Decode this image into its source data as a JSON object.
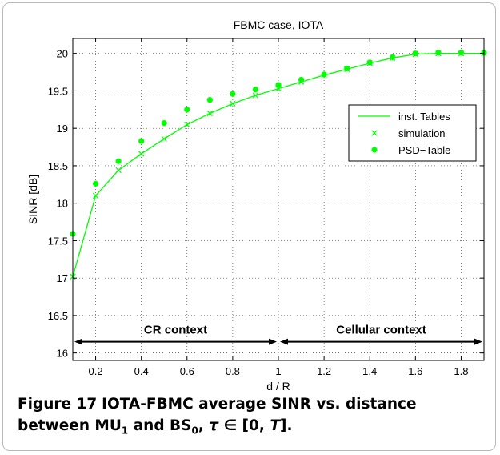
{
  "chart_data": {
    "type": "line",
    "title": "FBMC case, IOTA",
    "xlabel": "d / R",
    "ylabel": "SINR [dB]",
    "xlim": [
      0.1,
      1.9
    ],
    "ylim": [
      15.9,
      20.2
    ],
    "grid": true,
    "grid_style": "dotted",
    "legend_position": "center-right",
    "x_ticks": [
      0.2,
      0.4,
      0.6,
      0.8,
      1,
      1.2,
      1.4,
      1.6,
      1.8
    ],
    "y_ticks": [
      16,
      16.5,
      17,
      17.5,
      18,
      18.5,
      19,
      19.5,
      20
    ],
    "series": [
      {
        "name": "inst. Tables",
        "style": "line",
        "color": "#00ff00",
        "x": [
          0.1,
          0.2,
          0.3,
          0.4,
          0.5,
          0.6,
          0.7,
          0.8,
          0.9,
          1.0,
          1.1,
          1.2,
          1.3,
          1.4,
          1.5,
          1.6,
          1.7,
          1.8,
          1.9
        ],
        "y": [
          17.02,
          18.1,
          18.44,
          18.66,
          18.86,
          19.05,
          19.2,
          19.33,
          19.44,
          19.53,
          19.62,
          19.71,
          19.79,
          19.87,
          19.94,
          19.99,
          20.0,
          20.0,
          20.0
        ]
      },
      {
        "name": "simulation",
        "style": "x-marker",
        "color": "#00ff00",
        "x": [
          0.1,
          0.2,
          0.3,
          0.4,
          0.5,
          0.6,
          0.7,
          0.8,
          0.9,
          1.0,
          1.1,
          1.2,
          1.3,
          1.4,
          1.5,
          1.6,
          1.7,
          1.8,
          1.9
        ],
        "y": [
          17.02,
          18.1,
          18.44,
          18.66,
          18.86,
          19.05,
          19.2,
          19.33,
          19.44,
          19.53,
          19.62,
          19.71,
          19.79,
          19.87,
          19.94,
          19.99,
          20.0,
          20.0,
          20.0
        ]
      },
      {
        "name": "PSD−Table",
        "style": "dot-marker",
        "color": "#00ff00",
        "x": [
          0.1,
          0.2,
          0.3,
          0.4,
          0.5,
          0.6,
          0.7,
          0.8,
          0.9,
          1.0,
          1.1,
          1.2,
          1.3,
          1.4,
          1.5,
          1.6,
          1.7,
          1.8,
          1.9
        ],
        "y": [
          17.59,
          18.26,
          18.56,
          18.83,
          19.07,
          19.25,
          19.38,
          19.46,
          19.52,
          19.58,
          19.65,
          19.72,
          19.8,
          19.88,
          19.95,
          20.0,
          20.01,
          20.01,
          20.01
        ]
      }
    ],
    "annotations": [
      {
        "text": "CR context",
        "x_from": 0.1,
        "x_to": 1.0,
        "y": 16.15
      },
      {
        "text": "Cellular context",
        "x_from": 1.0,
        "x_to": 1.9,
        "y": 16.15
      }
    ]
  },
  "caption": {
    "figure_label": "Figure 17",
    "text_part1": "IOTA-FBMC average SINR vs. distance between MU",
    "sub1": "1",
    "text_part2": "and BS",
    "sub2": "0",
    "text_part3": ", ",
    "tau": "τ",
    "text_part4": " ∈ [0, ",
    "T": "T",
    "text_part5": "]."
  }
}
